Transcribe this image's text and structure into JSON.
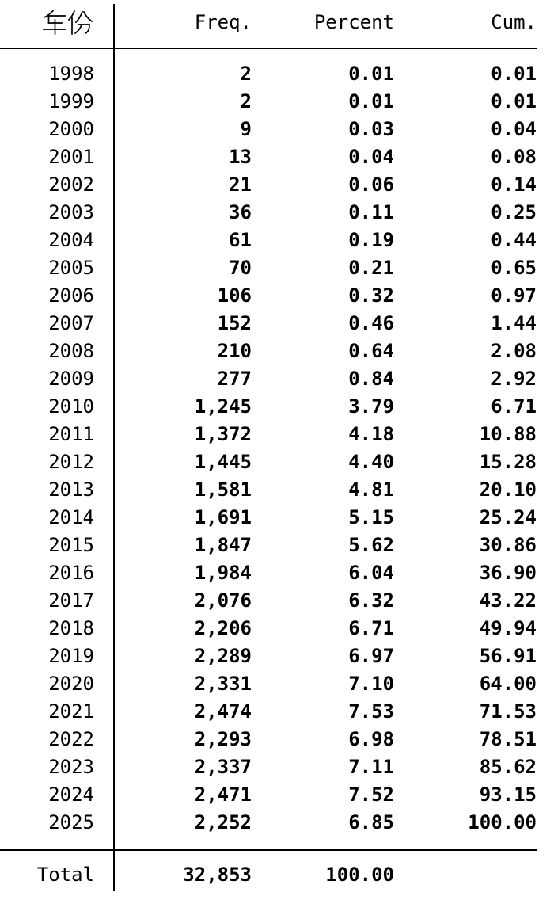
{
  "colors": {
    "text": "#000000",
    "background": "#ffffff",
    "rule": "#000000"
  },
  "table": {
    "columns": {
      "year": "年份",
      "freq": "Freq.",
      "percent": "Percent",
      "cum": "Cum."
    },
    "rows": [
      {
        "year": "1998",
        "freq": "2",
        "percent": "0.01",
        "cum": "0.01"
      },
      {
        "year": "1999",
        "freq": "2",
        "percent": "0.01",
        "cum": "0.01"
      },
      {
        "year": "2000",
        "freq": "9",
        "percent": "0.03",
        "cum": "0.04"
      },
      {
        "year": "2001",
        "freq": "13",
        "percent": "0.04",
        "cum": "0.08"
      },
      {
        "year": "2002",
        "freq": "21",
        "percent": "0.06",
        "cum": "0.14"
      },
      {
        "year": "2003",
        "freq": "36",
        "percent": "0.11",
        "cum": "0.25"
      },
      {
        "year": "2004",
        "freq": "61",
        "percent": "0.19",
        "cum": "0.44"
      },
      {
        "year": "2005",
        "freq": "70",
        "percent": "0.21",
        "cum": "0.65"
      },
      {
        "year": "2006",
        "freq": "106",
        "percent": "0.32",
        "cum": "0.97"
      },
      {
        "year": "2007",
        "freq": "152",
        "percent": "0.46",
        "cum": "1.44"
      },
      {
        "year": "2008",
        "freq": "210",
        "percent": "0.64",
        "cum": "2.08"
      },
      {
        "year": "2009",
        "freq": "277",
        "percent": "0.84",
        "cum": "2.92"
      },
      {
        "year": "2010",
        "freq": "1,245",
        "percent": "3.79",
        "cum": "6.71"
      },
      {
        "year": "2011",
        "freq": "1,372",
        "percent": "4.18",
        "cum": "10.88"
      },
      {
        "year": "2012",
        "freq": "1,445",
        "percent": "4.40",
        "cum": "15.28"
      },
      {
        "year": "2013",
        "freq": "1,581",
        "percent": "4.81",
        "cum": "20.10"
      },
      {
        "year": "2014",
        "freq": "1,691",
        "percent": "5.15",
        "cum": "25.24"
      },
      {
        "year": "2015",
        "freq": "1,847",
        "percent": "5.62",
        "cum": "30.86"
      },
      {
        "year": "2016",
        "freq": "1,984",
        "percent": "6.04",
        "cum": "36.90"
      },
      {
        "year": "2017",
        "freq": "2,076",
        "percent": "6.32",
        "cum": "43.22"
      },
      {
        "year": "2018",
        "freq": "2,206",
        "percent": "6.71",
        "cum": "49.94"
      },
      {
        "year": "2019",
        "freq": "2,289",
        "percent": "6.97",
        "cum": "56.91"
      },
      {
        "year": "2020",
        "freq": "2,331",
        "percent": "7.10",
        "cum": "64.00"
      },
      {
        "year": "2021",
        "freq": "2,474",
        "percent": "7.53",
        "cum": "71.53"
      },
      {
        "year": "2022",
        "freq": "2,293",
        "percent": "6.98",
        "cum": "78.51"
      },
      {
        "year": "2023",
        "freq": "2,337",
        "percent": "7.11",
        "cum": "85.62"
      },
      {
        "year": "2024",
        "freq": "2,471",
        "percent": "7.52",
        "cum": "93.15"
      },
      {
        "year": "2025",
        "freq": "2,252",
        "percent": "6.85",
        "cum": "100.00"
      }
    ],
    "total": {
      "label": "Total",
      "freq": "32,853",
      "percent": "100.00",
      "cum": ""
    }
  }
}
